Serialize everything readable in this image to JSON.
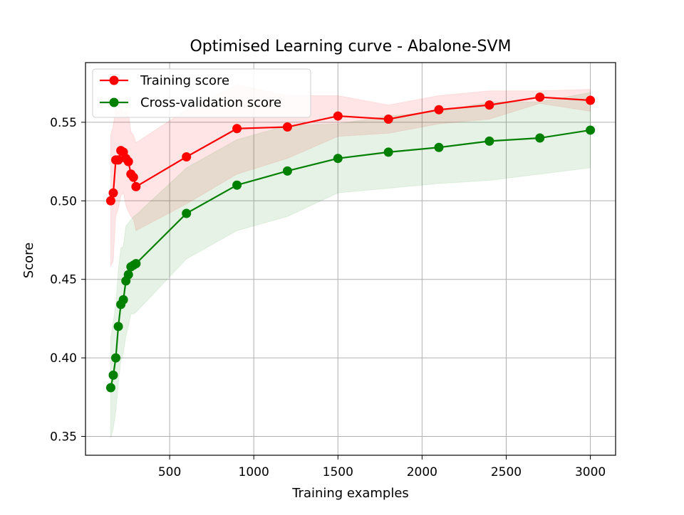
{
  "chart_data": {
    "type": "line",
    "title": "Optimised Learning curve - Abalone-SVM",
    "xlabel": "Training examples",
    "ylabel": "Score",
    "xlim": [
      0,
      3150
    ],
    "ylim": [
      0.338,
      0.588
    ],
    "xticks": [
      500,
      1000,
      1500,
      2000,
      2500,
      3000
    ],
    "yticks": [
      0.35,
      0.4,
      0.45,
      0.5,
      0.55
    ],
    "xtick_labels": [
      "500",
      "1000",
      "1500",
      "2000",
      "2500",
      "3000"
    ],
    "ytick_labels": [
      "0.35",
      "0.40",
      "0.45",
      "0.50",
      "0.55"
    ],
    "grid": true,
    "legend_position": "top-left",
    "x": [
      150,
      165,
      180,
      195,
      210,
      225,
      240,
      255,
      270,
      285,
      300,
      600,
      900,
      1200,
      1500,
      1800,
      2100,
      2400,
      2700,
      3000
    ],
    "series": [
      {
        "name": "Training score",
        "color": "#ff0000",
        "fill_color": "#ffb3b3",
        "values": [
          0.5,
          0.505,
          0.526,
          0.526,
          0.532,
          0.531,
          0.527,
          0.525,
          0.517,
          0.515,
          0.509,
          0.528,
          0.546,
          0.547,
          0.554,
          0.552,
          0.558,
          0.561,
          0.566,
          0.564
        ],
        "lower": [
          0.458,
          0.462,
          0.49,
          0.495,
          0.503,
          0.505,
          0.497,
          0.493,
          0.49,
          0.488,
          0.481,
          0.498,
          0.517,
          0.527,
          0.541,
          0.543,
          0.549,
          0.552,
          0.562,
          0.557
        ],
        "upper": [
          0.542,
          0.548,
          0.56,
          0.556,
          0.561,
          0.555,
          0.557,
          0.557,
          0.544,
          0.542,
          0.537,
          0.558,
          0.574,
          0.567,
          0.567,
          0.561,
          0.567,
          0.57,
          0.57,
          0.571
        ]
      },
      {
        "name": "Cross-validation score",
        "color": "#008000",
        "fill_color": "#b3d9b3",
        "values": [
          0.381,
          0.389,
          0.4,
          0.42,
          0.434,
          0.437,
          0.449,
          0.453,
          0.458,
          0.459,
          0.46,
          0.492,
          0.51,
          0.519,
          0.527,
          0.531,
          0.534,
          0.538,
          0.54,
          0.545
        ],
        "lower": [
          0.349,
          0.355,
          0.366,
          0.384,
          0.398,
          0.403,
          0.414,
          0.42,
          0.428,
          0.428,
          0.429,
          0.463,
          0.481,
          0.49,
          0.505,
          0.508,
          0.511,
          0.513,
          0.517,
          0.521
        ],
        "upper": [
          0.413,
          0.423,
          0.434,
          0.456,
          0.47,
          0.471,
          0.484,
          0.486,
          0.488,
          0.49,
          0.491,
          0.521,
          0.539,
          0.548,
          0.549,
          0.554,
          0.557,
          0.563,
          0.563,
          0.569
        ]
      }
    ]
  }
}
